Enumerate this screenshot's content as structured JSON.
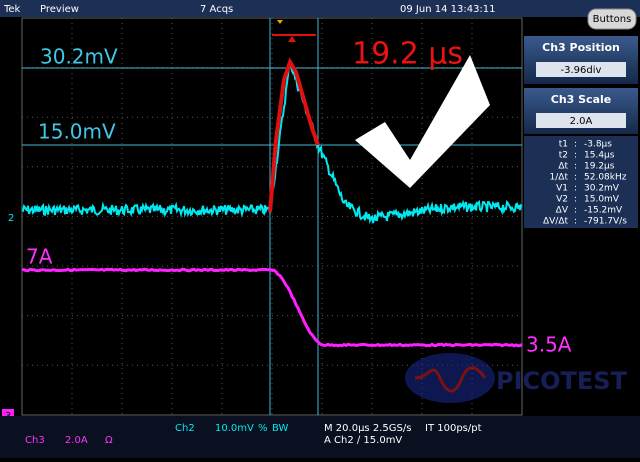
{
  "header": {
    "brand": "Tek",
    "mode": "Preview",
    "acquisitions": "7 Acqs",
    "timestamp": "09 Jun 14 13:43:11",
    "button": "Buttons"
  },
  "annotations": {
    "v1": "30.2mV",
    "v2": "15.0mV",
    "delta_t": "19.2 µs",
    "current_high": "7A",
    "current_low": "3.5A"
  },
  "markers": {
    "ch2": "2",
    "ch3": "3"
  },
  "panel": {
    "position_title": "Ch3 Position",
    "position_value": "-3.96div",
    "scale_title": "Ch3 Scale",
    "scale_value": "2.0A",
    "separator": ":",
    "readouts": [
      {
        "label": "t1",
        "value": "-3.8µs"
      },
      {
        "label": "t2",
        "value": "15.4µs"
      },
      {
        "label": "Δt",
        "value": "19.2µs"
      },
      {
        "label": "1/Δt",
        "value": "52.08kHz"
      },
      {
        "label": "V1",
        "value": "30.2mV"
      },
      {
        "label": "V2",
        "value": "15.0mV"
      },
      {
        "label": "ΔV",
        "value": "-15.2mV"
      },
      {
        "label": "ΔV/Δt",
        "value": "-791.7V/s"
      }
    ]
  },
  "status": {
    "ch3": "Ch3",
    "ch3_scale": "2.0A",
    "ch3_coupling": "Ω",
    "ch2": "Ch2",
    "ch2_scale": "10.0mV",
    "ch2_flag": "%",
    "bandwidth": "BW",
    "timebase": "M 20.0µs 2.5GS/s",
    "interp": "IT 100ps/pt",
    "trigger": "A Ch2 ∕ 15.0mV"
  },
  "logo": "PICOTEST"
}
